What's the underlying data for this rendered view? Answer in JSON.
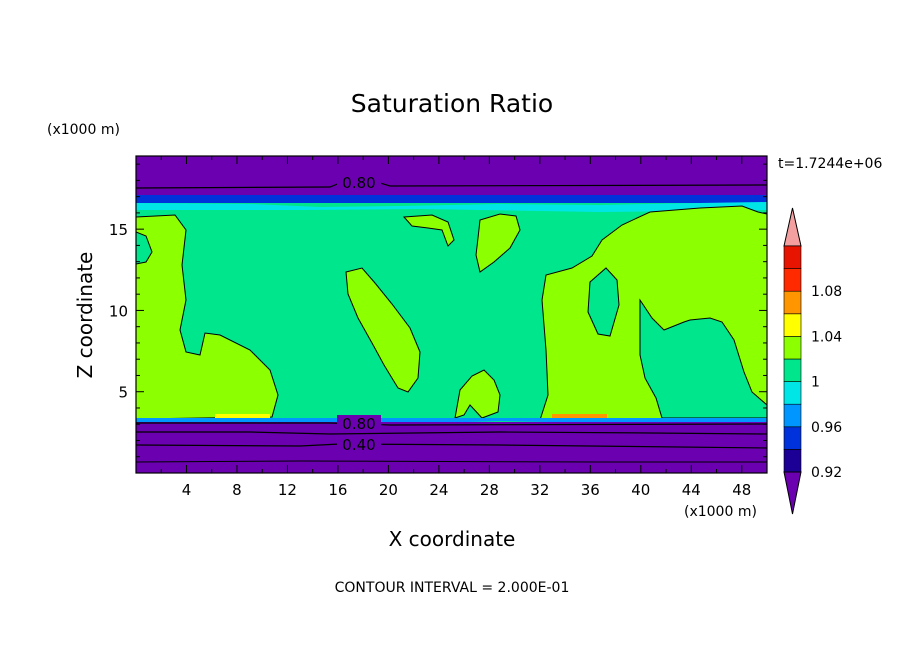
{
  "chart_data": {
    "type": "heatmap",
    "title": "Saturation Ratio",
    "xlabel": "X coordinate",
    "ylabel": "Z coordinate",
    "x_unit": "(x1000 m)",
    "y_unit": "(x1000 m)",
    "time_label": "t=1.7244e+06",
    "footer": "CONTOUR INTERVAL = 2.000E-01",
    "xlim": [
      0,
      50
    ],
    "ylim": [
      0,
      19.5
    ],
    "x_ticks": [
      4,
      8,
      12,
      16,
      20,
      24,
      28,
      32,
      36,
      40,
      44,
      48
    ],
    "y_ticks": [
      5,
      10,
      15
    ],
    "colorbar": {
      "levels": [
        0.92,
        0.94,
        0.96,
        0.98,
        1.0,
        1.02,
        1.04,
        1.06,
        1.08,
        1.1
      ],
      "tick_labels": [
        "0.92",
        "0.96",
        "1",
        "1.04",
        "1.08"
      ],
      "colors": [
        "#6b00b0",
        "#1c0096",
        "#0032dc",
        "#0096ff",
        "#00e6e6",
        "#00e68c",
        "#8cff00",
        "#ffff00",
        "#ff9600",
        "#ff2a00",
        "#e61400",
        "#f5a0a0"
      ]
    },
    "bands": [
      {
        "z_range": [
          17.6,
          19.5
        ],
        "value": "< 0.92"
      },
      {
        "z_range": [
          17.0,
          17.6
        ],
        "value": "0.92 - 0.96"
      },
      {
        "z_range": [
          16.6,
          17.0
        ],
        "value": "0.96 - 0.98"
      },
      {
        "z_range": [
          3.5,
          16.6
        ],
        "value": "0.98 - 1.02"
      },
      {
        "z_range": [
          3.2,
          3.5
        ],
        "value": "0.96 - 0.98"
      },
      {
        "z_range": [
          0,
          3.2
        ],
        "value": "< 0.92"
      }
    ],
    "contour_labels": [
      "0.80",
      "0.80",
      "0.40"
    ]
  }
}
